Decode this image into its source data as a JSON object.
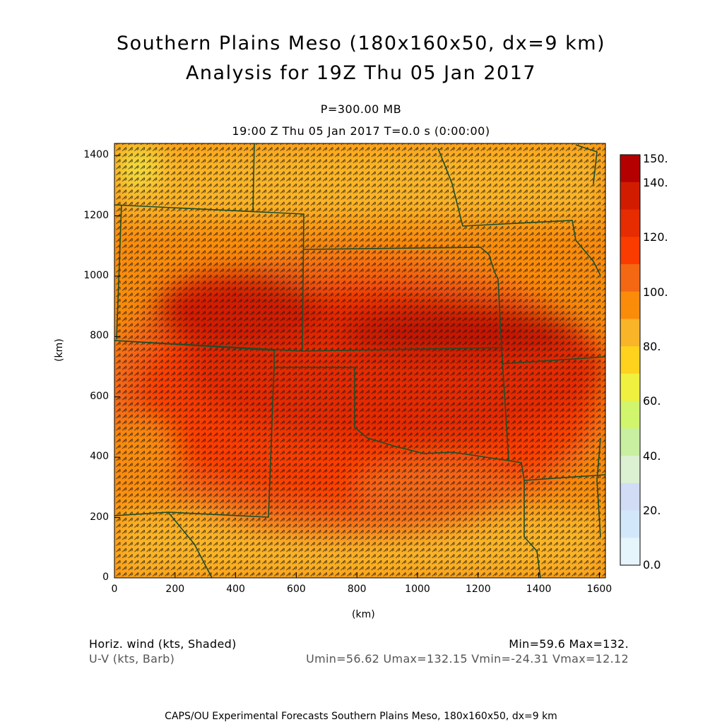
{
  "title": {
    "line1": "Southern Plains Meso (180x160x50, dx=9 km)",
    "line2": "Analysis for 19Z Thu 05 Jan 2017"
  },
  "subtitle": {
    "pressure": "P=300.00 MB",
    "time": "19:00 Z Thu 05 Jan 2017    T=0.0 s (0:00:00)"
  },
  "axes": {
    "xlabel": "(km)",
    "ylabel": "(km)",
    "xticks": [
      "0",
      "200",
      "400",
      "600",
      "800",
      "1000",
      "1200",
      "1400",
      "1600"
    ],
    "yticks": [
      "0",
      "200",
      "400",
      "600",
      "800",
      "1000",
      "1200",
      "1400"
    ]
  },
  "colorbar": {
    "labels": [
      "150.",
      "140.",
      "120.",
      "100.",
      "80.",
      "60.",
      "40.",
      "20.",
      "0.0"
    ],
    "colors": [
      "#b40000",
      "#d21c00",
      "#e62c00",
      "#fa3c00",
      "#f46814",
      "#fa8c0a",
      "#fab428",
      "#ffd21e",
      "#f0f040",
      "#d2f56e",
      "#c8f0a0",
      "#dcf0d2",
      "#d2dcf5",
      "#d2e8fa",
      "#e6f4fc"
    ]
  },
  "info": {
    "field1": "Horiz. wind (kts, Shaded)",
    "field2": "U-V (kts, Barb)",
    "minmax": "Min=59.6 Max=132.",
    "uvrange": "Umin=56.62 Umax=132.15 Vmin=-24.31 Vmax=12.12"
  },
  "footer": "CAPS/OU Experimental Forecasts  Southern Plains Meso, 180x160x50, dx=9 km",
  "map_colors": {
    "base": "#f68c1e",
    "border": "#1f4d2a",
    "barb": "#1a1a1a"
  }
}
